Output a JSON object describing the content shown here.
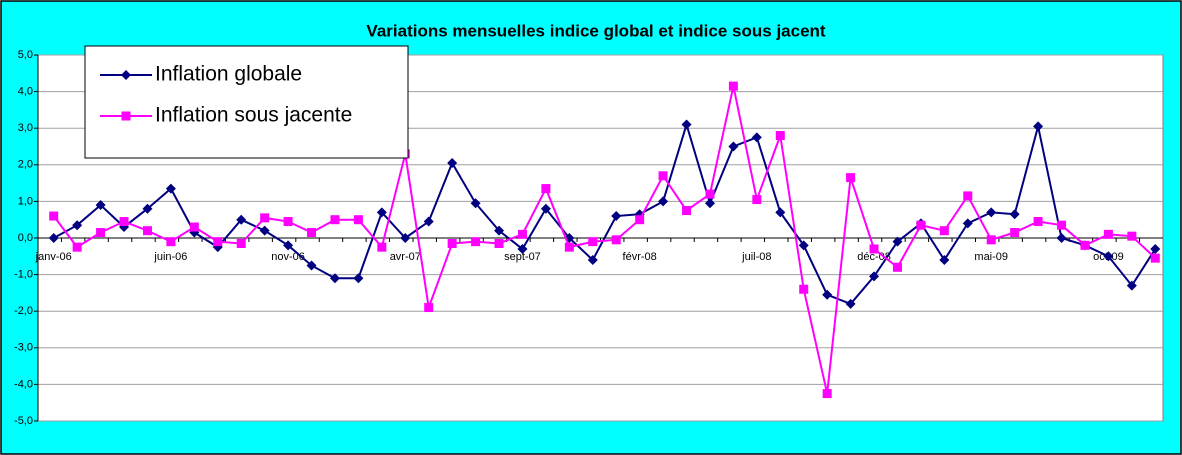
{
  "chart_data": {
    "type": "line",
    "title": "Variations mensuelles indice global et indice sous jacent",
    "categories": [
      "janv-06",
      null,
      null,
      null,
      null,
      "juin-06",
      null,
      null,
      null,
      null,
      "nov-06",
      null,
      null,
      null,
      null,
      "avr-07",
      null,
      null,
      null,
      null,
      "sept-07",
      null,
      null,
      null,
      null,
      "févr-08",
      null,
      null,
      null,
      null,
      "juil-08",
      null,
      null,
      null,
      null,
      "déc-08",
      null,
      null,
      null,
      null,
      "mai-09",
      null,
      null,
      null,
      null,
      "oct-09",
      null,
      null
    ],
    "series": [
      {
        "name": "Inflation globale",
        "color": "#000080",
        "marker": "diamond",
        "values": [
          0.0,
          0.35,
          0.9,
          0.3,
          0.8,
          1.35,
          0.15,
          -0.25,
          0.5,
          0.2,
          -0.2,
          -0.75,
          -1.1,
          -1.1,
          0.7,
          0.0,
          0.45,
          2.05,
          0.95,
          0.2,
          -0.3,
          0.8,
          0.0,
          -0.6,
          0.6,
          0.65,
          1.0,
          3.1,
          0.95,
          2.5,
          2.75,
          0.7,
          -0.2,
          -1.55,
          -1.8,
          -1.05,
          -0.1,
          0.4,
          -0.6,
          0.4,
          0.7,
          0.65,
          3.05,
          0.0,
          -0.2,
          -0.5,
          -1.3,
          -0.3
        ]
      },
      {
        "name": "Inflation sous jacente",
        "color": "#ff00ff",
        "marker": "square",
        "values": [
          0.6,
          -0.25,
          0.15,
          0.45,
          0.2,
          -0.1,
          0.3,
          -0.1,
          -0.15,
          0.55,
          0.45,
          0.15,
          0.5,
          0.5,
          -0.25,
          2.3,
          -1.9,
          -0.15,
          -0.1,
          -0.15,
          0.1,
          1.35,
          -0.25,
          -0.1,
          -0.05,
          0.5,
          1.7,
          0.75,
          1.2,
          4.15,
          1.05,
          2.8,
          -1.4,
          -4.25,
          1.65,
          -0.3,
          -0.8,
          0.35,
          0.2,
          1.15,
          -0.05,
          0.15,
          0.45,
          0.35,
          -0.2,
          0.1,
          0.05,
          -0.55
        ]
      }
    ],
    "ylim": [
      -5,
      5
    ],
    "yticks": [
      {
        "value": 5,
        "label": "5,0"
      },
      {
        "value": 4,
        "label": "4,0"
      },
      {
        "value": 3,
        "label": "3,0"
      },
      {
        "value": 2,
        "label": "2,0"
      },
      {
        "value": 1,
        "label": "1,0"
      },
      {
        "value": 0,
        "label": "0,0"
      },
      {
        "value": -1,
        "label": "-1,0"
      },
      {
        "value": -2,
        "label": "-2,0"
      },
      {
        "value": -3,
        "label": "-3,0"
      },
      {
        "value": -4,
        "label": "-4,0"
      },
      {
        "value": -5,
        "label": "-5,0"
      }
    ],
    "grid": true,
    "legend": "top-left"
  }
}
